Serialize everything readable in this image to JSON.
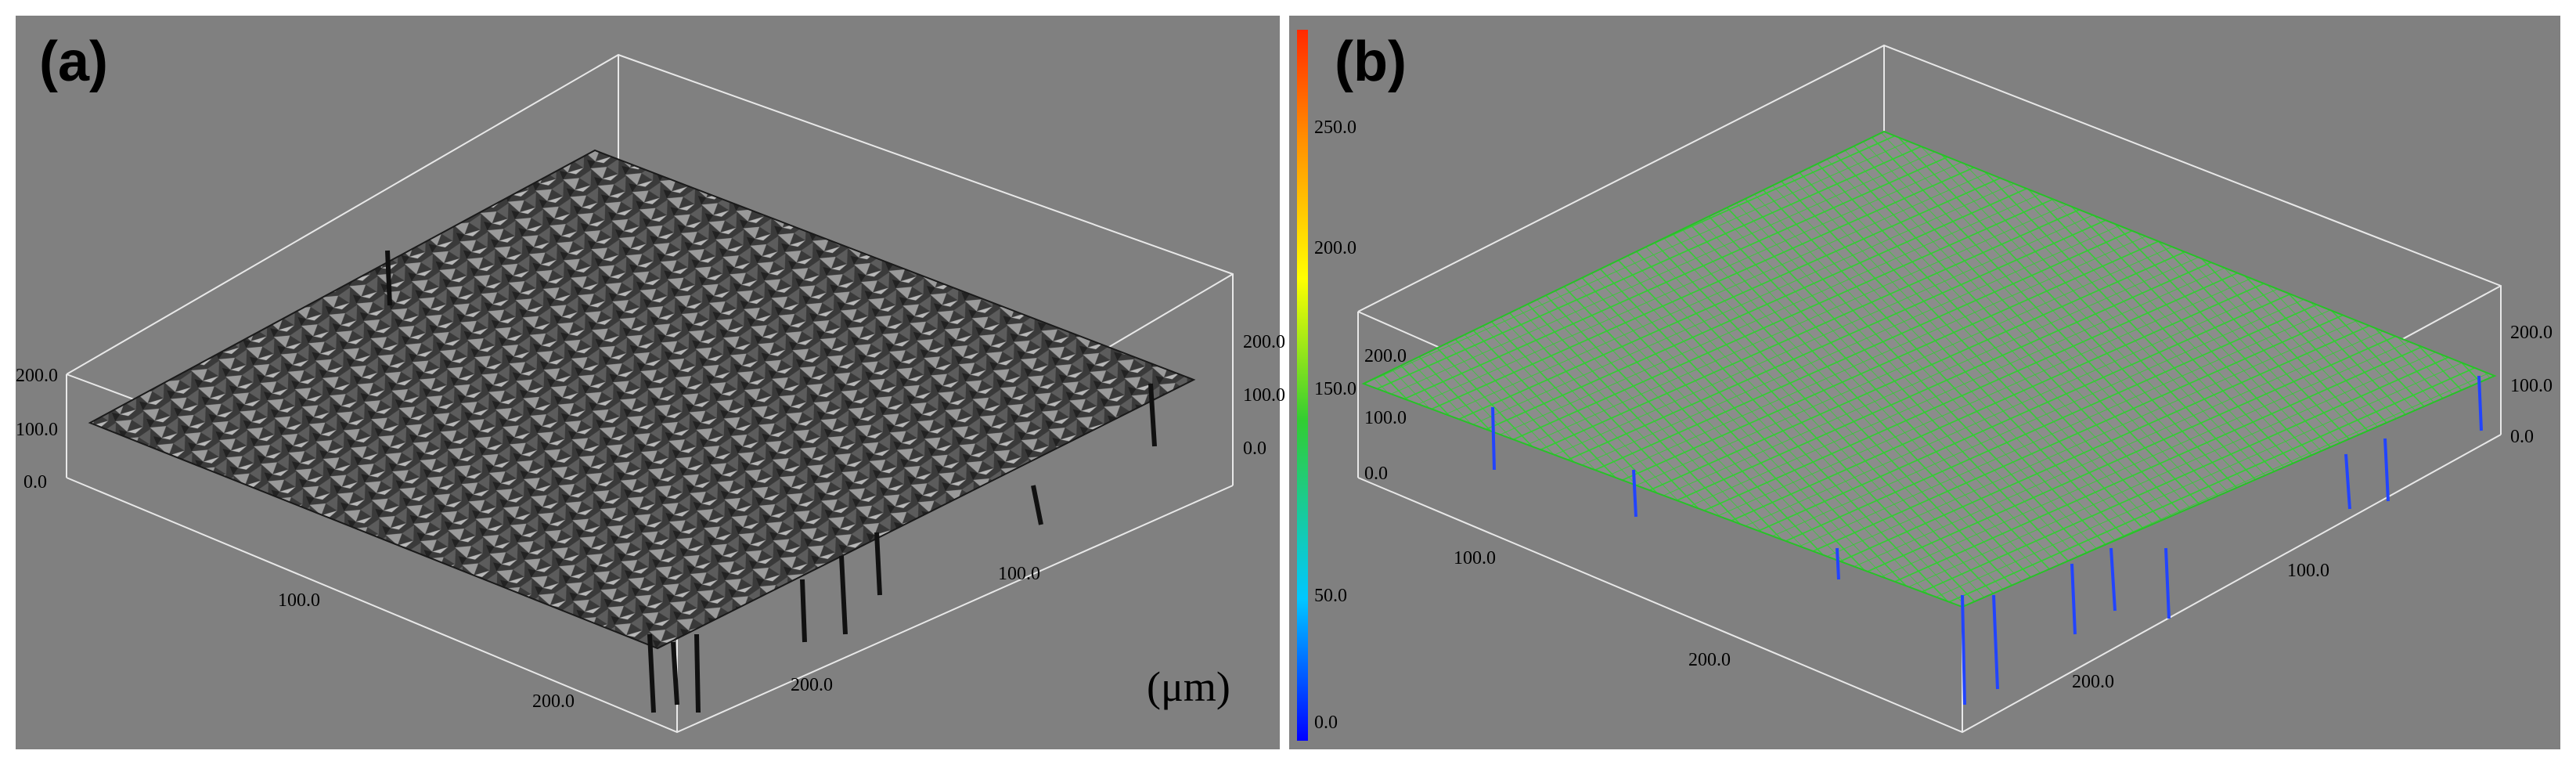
{
  "panels": {
    "a": {
      "label": "(a)",
      "z_ticks_left": [
        "200.0",
        "100.0",
        "0.0"
      ],
      "z_ticks_right": [
        "200.0",
        "100.0",
        "0.0"
      ],
      "x_ticks": [
        "100.0",
        "200.0"
      ],
      "y_ticks": [
        "100.0",
        "200.0"
      ],
      "unit": "(μm)",
      "surface_style": "grayscale shaded surface"
    },
    "b": {
      "label": "(b)",
      "z_ticks_left": [
        "200.0",
        "100.0",
        "0.0"
      ],
      "z_ticks_right": [
        "200.0",
        "100.0",
        "0.0"
      ],
      "x_ticks": [
        "100.0",
        "200.0"
      ],
      "y_ticks": [
        "100.0",
        "200.0"
      ],
      "surface_style": "color wireframe"
    }
  },
  "colorbar": {
    "ticks": [
      "250.0",
      "200.0",
      "150.0",
      "50.0",
      "0.0"
    ],
    "colors": [
      "#ff2a00",
      "#ff8c00",
      "#ffff00",
      "#32cd32",
      "#00c8ff",
      "#0000ff"
    ]
  }
}
